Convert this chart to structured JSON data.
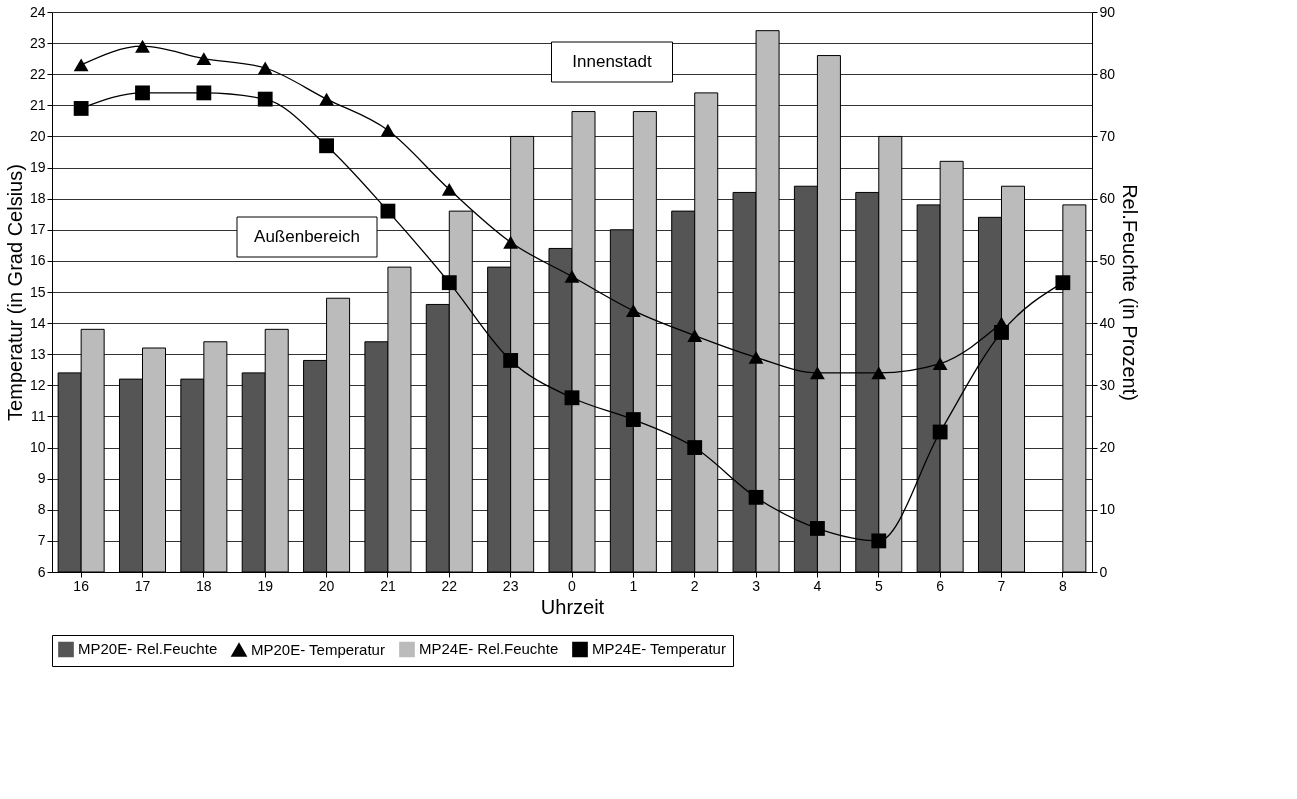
{
  "chart_data": {
    "type": "bar",
    "categories": [
      "16",
      "17",
      "18",
      "19",
      "20",
      "21",
      "22",
      "23",
      "0",
      "1",
      "2",
      "3",
      "4",
      "5",
      "6",
      "7",
      "8"
    ],
    "xlabel": "Uhrzeit",
    "ylabel": "Temperatur (in Grad Celsius)",
    "y2label": "Rel.Feuchte (in Prozent)",
    "series": [
      {
        "name": "MP20E- Rel.Feuchte",
        "axis": "y2",
        "color": "#555555",
        "values": [
          32,
          31,
          31,
          32,
          34,
          37,
          43,
          49,
          52,
          55,
          58,
          61,
          62,
          61,
          59,
          57,
          null
        ]
      },
      {
        "name": "MP20E- Temperatur",
        "type": "line",
        "marker": "triangle",
        "color": "#000000",
        "values": [
          22.3,
          22.9,
          22.5,
          22.2,
          21.2,
          20.2,
          18.3,
          16.6,
          15.5,
          14.4,
          13.6,
          12.9,
          12.4,
          12.4,
          12.7,
          14.0,
          null
        ]
      },
      {
        "name": "MP24E- Rel.Feuchte",
        "axis": "y2",
        "color": "#bbbbbb",
        "values": [
          39,
          36,
          37,
          39,
          44,
          49,
          58,
          70,
          74,
          74,
          77,
          87,
          83,
          70,
          66,
          62,
          59
        ]
      },
      {
        "name": "MP24E- Temperatur",
        "type": "line",
        "marker": "square",
        "color": "#000000",
        "values": [
          20.9,
          21.4,
          21.4,
          21.2,
          19.7,
          17.6,
          15.3,
          12.8,
          11.6,
          10.9,
          10.0,
          8.4,
          7.4,
          7.0,
          10.5,
          13.7,
          15.3
        ]
      }
    ],
    "ylim": [
      6,
      24
    ],
    "yticks": [
      6,
      7,
      8,
      9,
      10,
      11,
      12,
      13,
      14,
      15,
      16,
      17,
      18,
      19,
      20,
      21,
      22,
      23,
      24
    ],
    "y2lim": [
      0,
      90
    ],
    "y2ticks": [
      0,
      10,
      20,
      30,
      40,
      50,
      60,
      70,
      80,
      90
    ],
    "grid": "y",
    "legend": "bottom",
    "annotations": [
      "Innenstadt",
      "Außenbereich"
    ]
  }
}
